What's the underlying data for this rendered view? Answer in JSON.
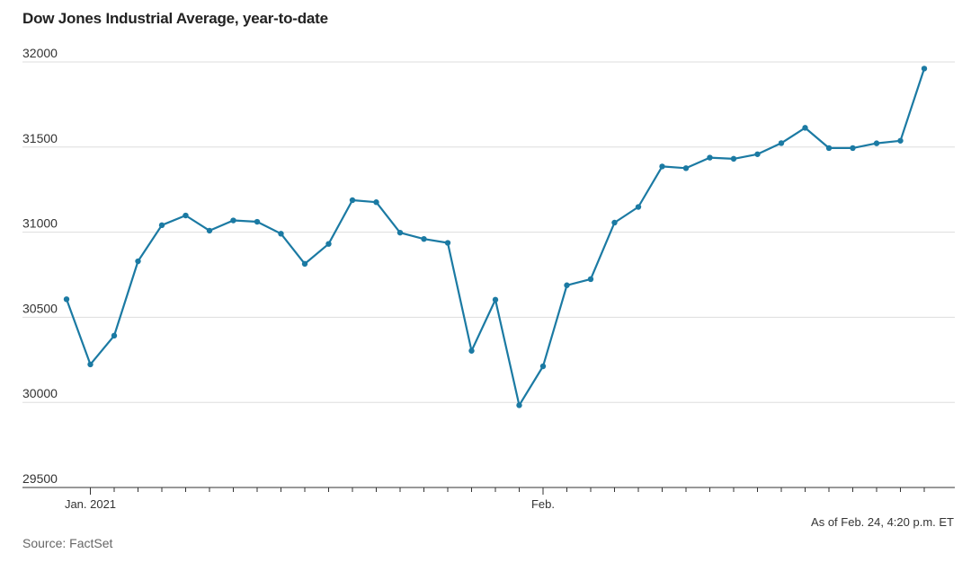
{
  "title": "Dow Jones Industrial Average, year-to-date",
  "note": "As of Feb. 24, 4:20 p.m. ET",
  "source": "Source: FactSet",
  "colors": {
    "line": "#1b7aa3",
    "grid": "#dddddd",
    "axis": "#333333"
  },
  "chart_data": {
    "type": "line",
    "title": "Dow Jones Industrial Average, year-to-date",
    "ylim": [
      29500,
      32000
    ],
    "yticks": [
      29500,
      30000,
      30500,
      31000,
      31500,
      32000
    ],
    "x_tick_labels": [
      {
        "label": "Jan. 2021",
        "date": "2021-01-01"
      },
      {
        "label": "Feb.",
        "date": "2021-02-01"
      }
    ],
    "grid": "horizontal",
    "series": [
      {
        "points": [
          {
            "date": "2020-12-31",
            "value": 30606
          },
          {
            "date": "2021-01-04",
            "value": 30223
          },
          {
            "date": "2021-01-05",
            "value": 30392
          },
          {
            "date": "2021-01-06",
            "value": 30829
          },
          {
            "date": "2021-01-07",
            "value": 31041
          },
          {
            "date": "2021-01-08",
            "value": 31098
          },
          {
            "date": "2021-01-11",
            "value": 31009
          },
          {
            "date": "2021-01-12",
            "value": 31069
          },
          {
            "date": "2021-01-13",
            "value": 31061
          },
          {
            "date": "2021-01-14",
            "value": 30991
          },
          {
            "date": "2021-01-15",
            "value": 30814
          },
          {
            "date": "2021-01-19",
            "value": 30931
          },
          {
            "date": "2021-01-20",
            "value": 31188
          },
          {
            "date": "2021-01-21",
            "value": 31176
          },
          {
            "date": "2021-01-22",
            "value": 30997
          },
          {
            "date": "2021-01-25",
            "value": 30960
          },
          {
            "date": "2021-01-26",
            "value": 30937
          },
          {
            "date": "2021-01-27",
            "value": 30303
          },
          {
            "date": "2021-01-28",
            "value": 30603
          },
          {
            "date": "2021-01-29",
            "value": 29983
          },
          {
            "date": "2021-02-01",
            "value": 30212
          },
          {
            "date": "2021-02-02",
            "value": 30688
          },
          {
            "date": "2021-02-03",
            "value": 30724
          },
          {
            "date": "2021-02-04",
            "value": 31056
          },
          {
            "date": "2021-02-05",
            "value": 31148
          },
          {
            "date": "2021-02-08",
            "value": 31386
          },
          {
            "date": "2021-02-09",
            "value": 31376
          },
          {
            "date": "2021-02-10",
            "value": 31438
          },
          {
            "date": "2021-02-11",
            "value": 31431
          },
          {
            "date": "2021-02-12",
            "value": 31458
          },
          {
            "date": "2021-02-16",
            "value": 31523
          },
          {
            "date": "2021-02-17",
            "value": 31613
          },
          {
            "date": "2021-02-18",
            "value": 31494
          },
          {
            "date": "2021-02-19",
            "value": 31494
          },
          {
            "date": "2021-02-22",
            "value": 31522
          },
          {
            "date": "2021-02-23",
            "value": 31537
          },
          {
            "date": "2021-02-24",
            "value": 31961
          }
        ]
      }
    ]
  }
}
